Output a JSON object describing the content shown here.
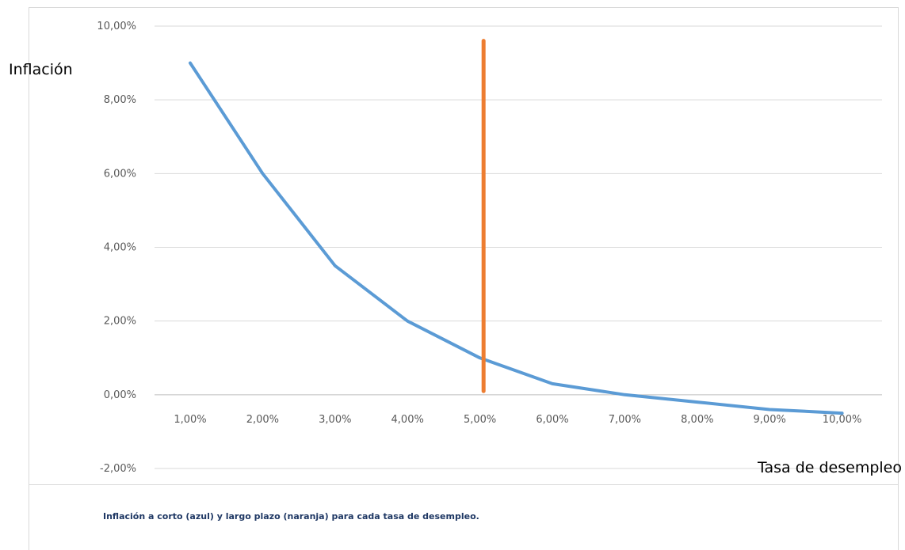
{
  "chart_data": {
    "type": "line",
    "title": "",
    "xlabel": "Tasa de desempleo",
    "ylabel": "Inflación",
    "categories": [
      "1,00%",
      "2,00%",
      "3,00%",
      "4,00%",
      "5,00%",
      "6,00%",
      "7,00%",
      "8,00%",
      "9,00%",
      "10,00%"
    ],
    "x_tick_labels": [
      "1,00%",
      "2,00%",
      "3,00%",
      "4,00%",
      "5,00%",
      "6,00%",
      "7,00%",
      "8,00%",
      "9,00%",
      "10,00%"
    ],
    "y_tick_labels": [
      "-2,00%",
      "0,00%",
      "2,00%",
      "4,00%",
      "6,00%",
      "8,00%",
      "10,00%"
    ],
    "y_ticks": [
      -2,
      0,
      2,
      4,
      6,
      8,
      10
    ],
    "ylim": [
      -2,
      10
    ],
    "grid": true,
    "series": [
      {
        "color": "#5b9bd5",
        "x": [
          1,
          2,
          3,
          4,
          5,
          6,
          7,
          8,
          9,
          10
        ],
        "values": [
          9.0,
          6.0,
          3.5,
          2.0,
          1.0,
          0.3,
          0.0,
          -0.2,
          -0.4,
          -0.5
        ]
      },
      {
        "color": "#ed7d31",
        "x": [
          5.05,
          5.05
        ],
        "values": [
          9.6,
          0.1
        ]
      }
    ]
  },
  "caption": "Inflación a corto (azul) y largo plazo (naranja) para cada tasa de desempleo."
}
